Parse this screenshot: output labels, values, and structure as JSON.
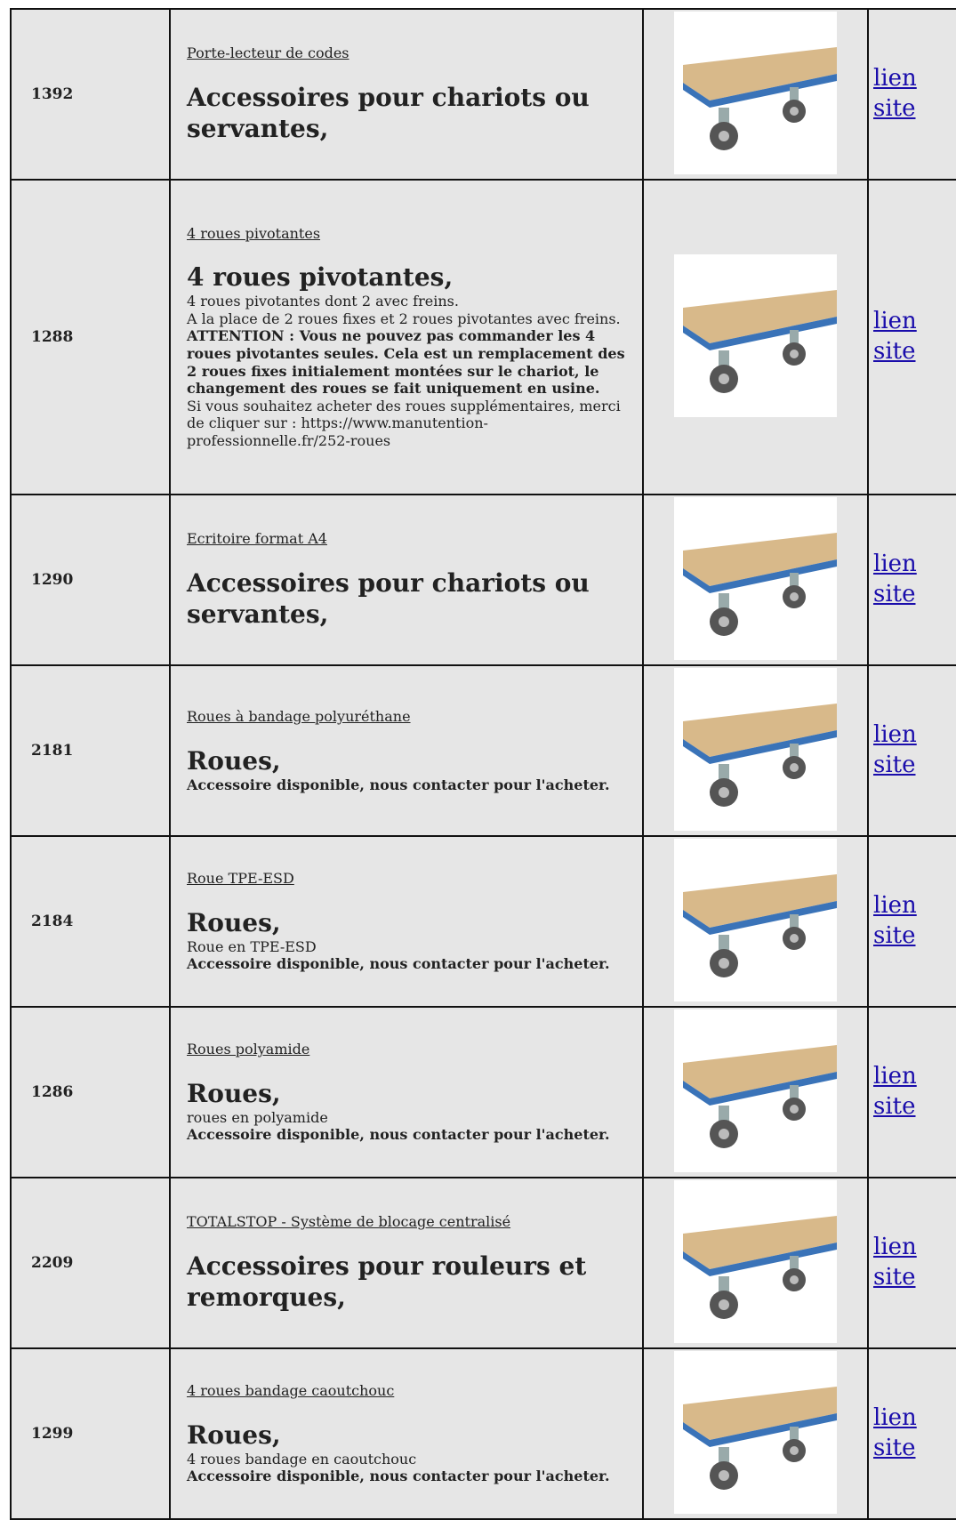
{
  "table": {
    "rows": [
      {
        "id": "1392",
        "product": "Porte-lecteur de codes",
        "category": "Accessoires pour chariots ou servantes,",
        "details": [],
        "link": "lien site"
      },
      {
        "id": "1288",
        "product": "4 roues pivotantes",
        "category": "4 roues pivotantes,",
        "details": [
          {
            "text": "4 roues pivotantes dont 2 avec freins.",
            "bold": false
          },
          {
            "text": "A la place de 2 roues fixes et 2 roues pivotantes avec freins.",
            "bold": false
          },
          {
            "text": "ATTENTION : Vous ne pouvez pas commander les 4 roues pivotantes seules. Cela est un remplacement des 2 roues fixes initialement montées sur le chariot, le changement des roues se fait uniquement en usine.",
            "bold": true
          },
          {
            "text": "Si vous souhaitez acheter des roues supplémentaires, merci de cliquer sur : https://www.manutention-professionnelle.fr/252-roues",
            "bold": false
          }
        ],
        "link": "lien site"
      },
      {
        "id": "1290",
        "product": "Ecritoire format A4",
        "category": "Accessoires pour chariots ou servantes,",
        "details": [],
        "link": "lien site"
      },
      {
        "id": "2181",
        "product": "Roues à bandage polyuréthane",
        "category": "Roues,",
        "details": [
          {
            "text": "Accessoire disponible, nous contacter pour l'acheter.",
            "bold": true
          }
        ],
        "link": "lien site"
      },
      {
        "id": "2184",
        "product": "Roue TPE-ESD",
        "category": "Roues,",
        "details": [
          {
            "text": "Roue en TPE-ESD",
            "bold": false
          },
          {
            "text": "Accessoire disponible, nous contacter pour l'acheter.",
            "bold": true
          }
        ],
        "link": "lien site"
      },
      {
        "id": "1286",
        "product": "Roues polyamide",
        "category": "Roues,",
        "details": [
          {
            "text": "roues en polyamide",
            "bold": false
          },
          {
            "text": "Accessoire disponible, nous contacter pour l'acheter.",
            "bold": true
          }
        ],
        "link": "lien site"
      },
      {
        "id": "2209",
        "product": "TOTALSTOP - Système de blocage centralisé",
        "category": "Accessoires pour rouleurs et remorques,",
        "details": [],
        "link": "lien site"
      },
      {
        "id": "1299",
        "product": "4 roues bandage caoutchouc",
        "category": "Roues,",
        "details": [
          {
            "text": "4 roues bandage en caoutchouc",
            "bold": false
          },
          {
            "text": "Accessoire disponible, nous contacter pour l'acheter.",
            "bold": true
          }
        ],
        "link": "lien site"
      }
    ]
  }
}
